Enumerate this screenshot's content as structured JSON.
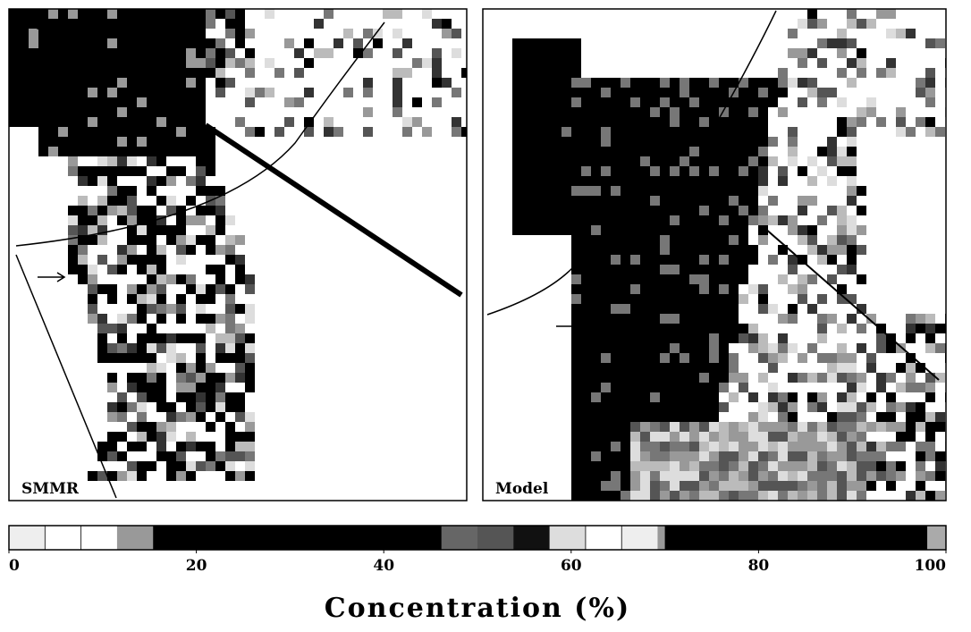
{
  "panels": [
    {
      "label": "SMMR"
    },
    {
      "label": "Model"
    }
  ],
  "colorbar": {
    "lim": [
      0,
      100
    ],
    "ticks": [
      0,
      20,
      40,
      60,
      80,
      100
    ],
    "label": "Concentration (%)"
  }
}
